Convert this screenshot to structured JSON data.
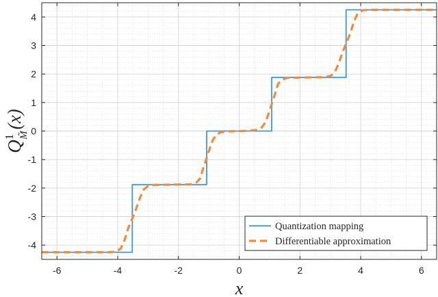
{
  "chart_data": {
    "type": "line",
    "xlabel": "x",
    "ylabel": {
      "main": "Q",
      "sup": "1",
      "sub": "M̃",
      "arg": "(x)"
    },
    "xlim": [
      -6.5,
      6.5
    ],
    "ylim": [
      -4.5,
      4.5
    ],
    "xticks": [
      -6,
      -4,
      -2,
      0,
      2,
      4,
      6
    ],
    "yticks": [
      -4,
      -3,
      -2,
      -1,
      0,
      1,
      2,
      3,
      4
    ],
    "grid": true,
    "minor_grid": true,
    "legend_position": "bottom-right",
    "series": [
      {
        "name": "Quantization mapping",
        "style": "solid",
        "color": "#3a9ad9",
        "x": [
          -6.5,
          -3.52,
          -3.52,
          -1.07,
          -1.07,
          1.07,
          1.07,
          3.52,
          3.52,
          6.5
        ],
        "y": [
          -4.25,
          -4.25,
          -1.88,
          -1.88,
          0.0,
          0.0,
          1.88,
          1.88,
          4.25,
          4.25
        ]
      },
      {
        "name": "Differentiable approximation",
        "style": "dashed",
        "color": "#f28a3a",
        "x": [
          -6.5,
          -4.3,
          -4.05,
          -3.9,
          -3.78,
          -3.65,
          -3.52,
          -3.4,
          -3.27,
          -3.14,
          -3.0,
          -2.8,
          -2.2,
          -1.6,
          -1.4,
          -1.28,
          -1.18,
          -1.07,
          -0.96,
          -0.86,
          -0.74,
          -0.6,
          -0.3,
          0.0,
          0.3,
          0.6,
          0.74,
          0.86,
          0.96,
          1.07,
          1.18,
          1.28,
          1.4,
          1.6,
          2.2,
          2.8,
          3.0,
          3.14,
          3.27,
          3.4,
          3.52,
          3.65,
          3.78,
          3.9,
          4.05,
          4.3,
          6.5
        ],
        "y": [
          -4.25,
          -4.25,
          -4.23,
          -4.12,
          -3.85,
          -3.4,
          -3.07,
          -2.75,
          -2.35,
          -2.05,
          -1.93,
          -1.89,
          -1.88,
          -1.87,
          -1.8,
          -1.65,
          -1.3,
          -0.94,
          -0.58,
          -0.3,
          -0.12,
          -0.04,
          -0.01,
          0.0,
          0.01,
          0.04,
          0.12,
          0.3,
          0.58,
          0.94,
          1.3,
          1.65,
          1.8,
          1.87,
          1.88,
          1.89,
          1.93,
          2.05,
          2.35,
          2.75,
          3.07,
          3.4,
          3.85,
          4.12,
          4.23,
          4.25,
          4.25
        ]
      }
    ]
  }
}
